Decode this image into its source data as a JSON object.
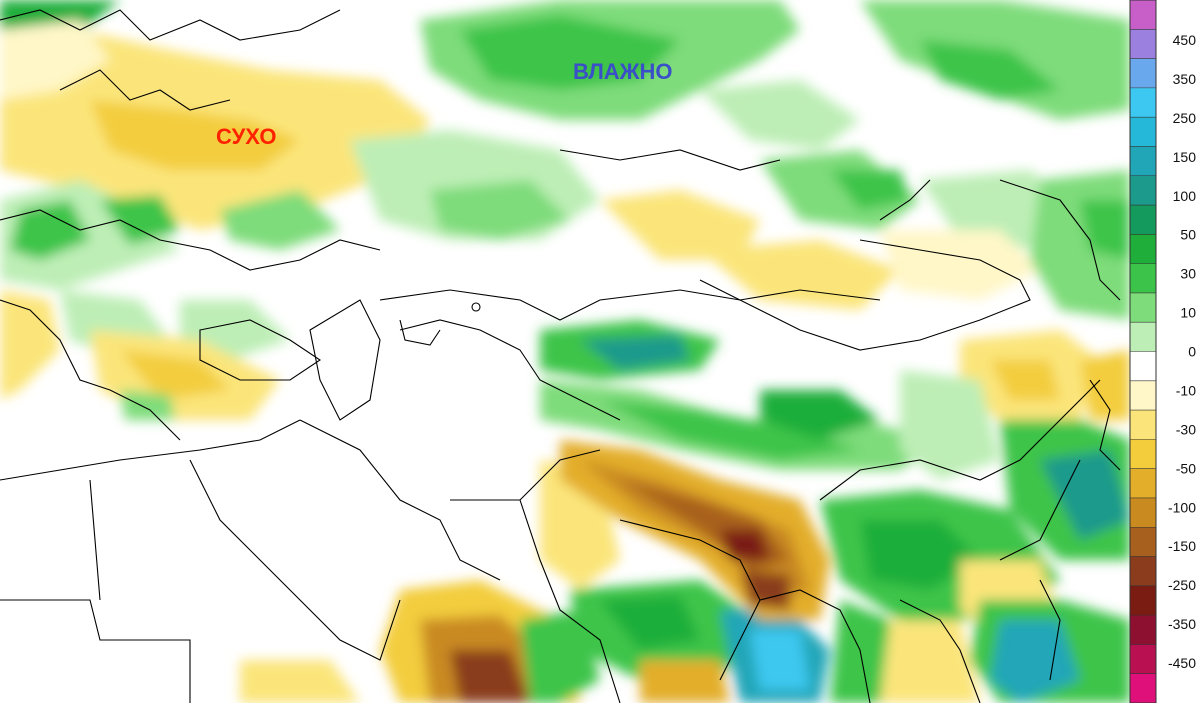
{
  "map": {
    "annotations": {
      "dry": "СУХО",
      "wet": "ВЛАЖНО"
    },
    "annotation_colors": {
      "dry": "#ff2200",
      "wet": "#3a4fc8"
    },
    "colorbar": {
      "labels": [
        "450",
        "350",
        "250",
        "150",
        "100",
        "50",
        "30",
        "10",
        "0",
        "-10",
        "-30",
        "-50",
        "-100",
        "-150",
        "-250",
        "-350",
        "-450"
      ],
      "colors": [
        "#c85fc8",
        "#9b80e0",
        "#6aa8ee",
        "#3cc8f0",
        "#25b8d8",
        "#21a6b8",
        "#1c9a8c",
        "#139a5c",
        "#1fae3a",
        "#3cc44a",
        "#7edc7a",
        "#bdeeb6",
        "#ffffff",
        "#fff7c8",
        "#fbe57a",
        "#f3cd3c",
        "#e3ae2a",
        "#c98a20",
        "#a8601e",
        "#8a3c1c",
        "#7a1c12",
        "#8e1030",
        "#b81050",
        "#e0107a"
      ]
    }
  }
}
